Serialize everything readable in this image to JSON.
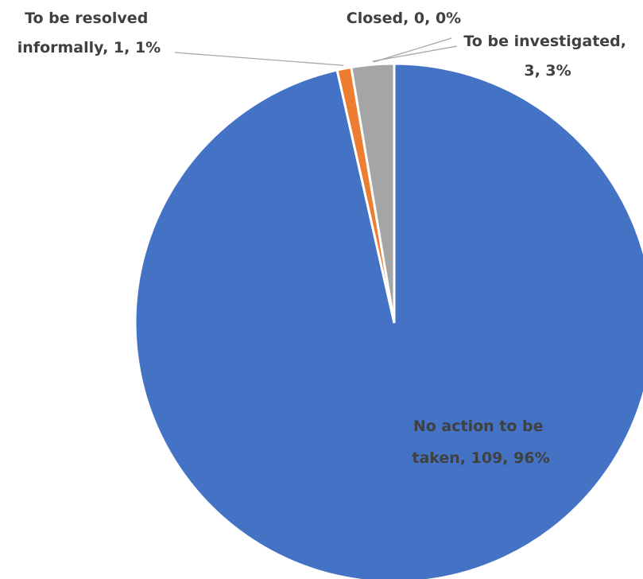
{
  "chart_data": {
    "type": "pie",
    "slices": [
      {
        "category": "No action to be taken",
        "value": 109,
        "percent": "96%",
        "color": "#4472c4",
        "label_lines": [
          "No action to be",
          "taken, 109, 96%"
        ]
      },
      {
        "category": "To be resolved informally",
        "value": 1,
        "percent": "1%",
        "color": "#ed7d31",
        "label_lines": [
          "To be resolved",
          "informally, 1, 1%"
        ]
      },
      {
        "category": "To be investigated",
        "value": 3,
        "percent": "3%",
        "color": "#a5a5a5",
        "label_lines": [
          "To be investigated,",
          "3, 3%"
        ]
      },
      {
        "category": "Closed",
        "value": 0,
        "percent": "0%",
        "color": "#ffc000",
        "label_lines": [
          "Closed, 0, 0%"
        ]
      }
    ],
    "start_angle": "top",
    "direction": "clockwise",
    "data_labels": "category, value, percentage",
    "legend": "none"
  }
}
